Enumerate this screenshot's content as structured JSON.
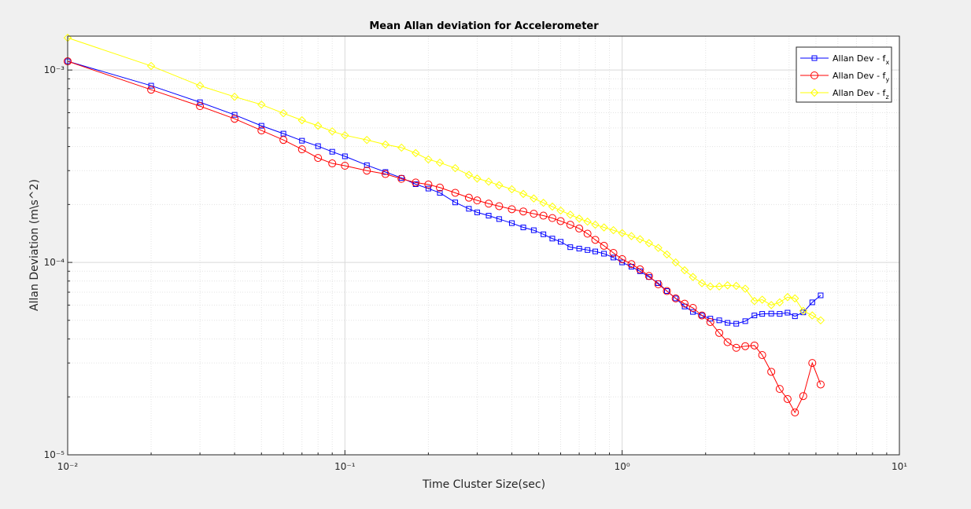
{
  "chart_data": {
    "type": "line",
    "title": "Mean Allan deviation for Accelerometer",
    "xlabel": "Time Cluster Size(sec)",
    "ylabel": "Allan Deviation (m\\s^2)",
    "xscale": "log",
    "yscale": "log",
    "grid": true,
    "legend": "upper-right",
    "xlim": [
      0.01,
      10
    ],
    "ylim": [
      1e-05,
      0.0015
    ],
    "xticks": [
      {
        "value": 0.01,
        "label": "10⁻²"
      },
      {
        "value": 0.1,
        "label": "10⁻¹"
      },
      {
        "value": 1,
        "label": "10⁰"
      },
      {
        "value": 10,
        "label": "10¹"
      }
    ],
    "yticks": [
      {
        "value": 1e-05,
        "label": "10⁻⁵"
      },
      {
        "value": 0.0001,
        "label": "10⁻⁴"
      },
      {
        "value": 0.001,
        "label": "10⁻³"
      }
    ],
    "xminorticks": [
      0.02,
      0.03,
      0.04,
      0.05,
      0.06,
      0.07,
      0.08,
      0.09,
      0.2,
      0.3,
      0.4,
      0.5,
      0.6,
      0.7,
      0.8,
      0.9,
      2,
      3,
      4,
      5,
      6,
      7,
      8,
      9
    ],
    "yminorticks": [
      2e-05,
      3e-05,
      4e-05,
      5e-05,
      6e-05,
      7e-05,
      8e-05,
      9e-05,
      0.0002,
      0.0003,
      0.0004,
      0.0005,
      0.0006,
      0.0007,
      0.0008,
      0.0009
    ],
    "x": [
      0.01,
      0.02,
      0.03,
      0.04,
      0.05,
      0.06,
      0.07,
      0.08,
      0.09,
      0.1,
      0.12,
      0.14,
      0.16,
      0.18,
      0.2,
      0.22,
      0.25,
      0.28,
      0.3,
      0.33,
      0.36,
      0.4,
      0.44,
      0.48,
      0.52,
      0.56,
      0.6,
      0.65,
      0.7,
      0.75,
      0.8,
      0.86,
      0.93,
      1.0,
      1.08,
      1.16,
      1.25,
      1.35,
      1.45,
      1.56,
      1.68,
      1.8,
      1.94,
      2.08,
      2.24,
      2.4,
      2.58,
      2.78,
      3.0,
      3.2,
      3.45,
      3.7,
      3.95,
      4.2,
      4.5,
      4.85,
      5.2
    ],
    "series": [
      {
        "name": "Allan Dev - fx",
        "color": "#0000ff",
        "marker": "square",
        "values": [
          0.00111,
          0.000829,
          0.00068,
          0.000585,
          0.000513,
          0.000467,
          0.000429,
          0.000402,
          0.000376,
          0.000356,
          0.00032,
          0.000295,
          0.000275,
          0.000255,
          0.000242,
          0.00023,
          0.000205,
          0.00019,
          0.000182,
          0.000175,
          0.000168,
          0.00016,
          0.000152,
          0.000147,
          0.00014,
          0.000133,
          0.000128,
          0.00012,
          0.000118,
          0.000116,
          0.000114,
          0.000111,
          0.000106,
          0.0001,
          9.5e-05,
          9e-05,
          8.4e-05,
          7.8e-05,
          7.1e-05,
          6.5e-05,
          5.9e-05,
          5.53e-05,
          5.3e-05,
          5.1e-05,
          5e-05,
          4.85e-05,
          4.8e-05,
          4.95e-05,
          5.3e-05,
          5.4e-05,
          5.42e-05,
          5.4e-05,
          5.48e-05,
          5.25e-05,
          5.5e-05,
          6.2e-05,
          6.74e-05
        ]
      },
      {
        "name": "Allan Dev - fy",
        "color": "#ff0000",
        "marker": "circle",
        "values": [
          0.00111,
          0.00079,
          0.000649,
          0.000558,
          0.000485,
          0.000433,
          0.000387,
          0.000349,
          0.000327,
          0.000318,
          0.0003,
          0.000288,
          0.000272,
          0.00026,
          0.000254,
          0.000245,
          0.00023,
          0.000217,
          0.00021,
          0.000202,
          0.000196,
          0.000189,
          0.000184,
          0.000179,
          0.000175,
          0.00017,
          0.000164,
          0.000157,
          0.00015,
          0.000141,
          0.000131,
          0.000122,
          0.000112,
          0.000104,
          9.8e-05,
          9.2e-05,
          8.5e-05,
          7.7e-05,
          7.1e-05,
          6.5e-05,
          6.1e-05,
          5.8e-05,
          5.3e-05,
          4.9e-05,
          4.3e-05,
          3.85e-05,
          3.6e-05,
          3.67e-05,
          3.7e-05,
          3.3e-05,
          2.7e-05,
          2.2e-05,
          1.95e-05,
          1.66e-05,
          2.02e-05,
          3e-05,
          2.32e-05
        ]
      },
      {
        "name": "Allan Dev - fz",
        "color": "#ffff00",
        "marker": "diamond",
        "values": [
          0.00147,
          0.00105,
          0.000829,
          0.000726,
          0.000661,
          0.000596,
          0.000548,
          0.000513,
          0.00048,
          0.000458,
          0.000433,
          0.00041,
          0.000395,
          0.00037,
          0.000343,
          0.00033,
          0.000309,
          0.000285,
          0.000273,
          0.000263,
          0.000252,
          0.00024,
          0.000227,
          0.000215,
          0.000204,
          0.000195,
          0.000186,
          0.000177,
          0.000169,
          0.000163,
          0.000157,
          0.000152,
          0.000147,
          0.000142,
          0.000137,
          0.000132,
          0.000126,
          0.000119,
          0.00011,
          0.0001,
          9.1e-05,
          8.4e-05,
          7.8e-05,
          7.5e-05,
          7.5e-05,
          7.6e-05,
          7.55e-05,
          7.3e-05,
          6.3e-05,
          6.4e-05,
          6e-05,
          6.2e-05,
          6.6e-05,
          6.5e-05,
          5.6e-05,
          5.3e-05,
          5e-05
        ]
      }
    ]
  }
}
